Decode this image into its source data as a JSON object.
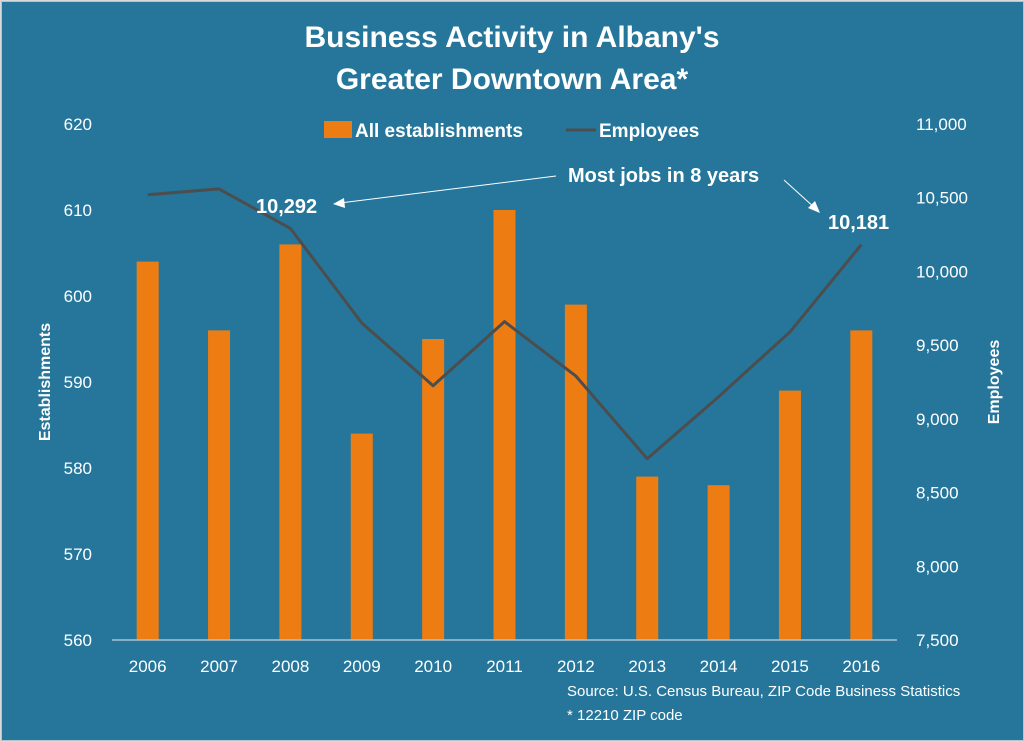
{
  "chart_data": {
    "type": "bar+line",
    "title": "Business Activity in Albany's Greater Downtown Area*",
    "title_lines": [
      "Business Activity in Albany's",
      "Greater Downtown Area*"
    ],
    "categories": [
      "2006",
      "2007",
      "2008",
      "2009",
      "2010",
      "2011",
      "2012",
      "2013",
      "2014",
      "2015",
      "2016"
    ],
    "series": [
      {
        "name": "All establishments",
        "type": "bar",
        "axis": "left",
        "color": "#ed7d12",
        "values": [
          604,
          596,
          606,
          584,
          595,
          610,
          599,
          579,
          578,
          589,
          596
        ]
      },
      {
        "name": "Employees",
        "type": "line",
        "axis": "right",
        "color": "#4d4d4d",
        "values": [
          10520,
          10560,
          10292,
          9650,
          9225,
          9660,
          9290,
          8730,
          9150,
          9590,
          10181
        ]
      }
    ],
    "left_axis": {
      "label": "Establishments",
      "ylim": [
        560,
        620
      ],
      "ticks": [
        "620",
        "610",
        "600",
        "590",
        "580",
        "570",
        "560"
      ],
      "tick_values": [
        620,
        610,
        600,
        590,
        580,
        570,
        560
      ]
    },
    "right_axis": {
      "label": "Employees",
      "ylim": [
        7500,
        11000
      ],
      "ticks": [
        "11,000",
        "10,500",
        "10,000",
        "9,500",
        "9,000",
        "8,500",
        "8,000",
        "7,500"
      ],
      "tick_values": [
        11000,
        10500,
        10000,
        9500,
        9000,
        8500,
        8000,
        7500
      ]
    },
    "xlabel": "",
    "grid": false,
    "legend_position": "top",
    "annotations": {
      "callout": "Most  jobs  in 8 years",
      "label_2008": "10,292",
      "label_2016": "10,181"
    },
    "source": "Source: U.S. Census Bureau, ZIP Code Business Statistics",
    "footnote": "* 12210 ZIP code"
  },
  "colors": {
    "background": "#25769a",
    "bar": "#ed7d12",
    "line": "#4d4d4d",
    "text": "#ffffff",
    "axis_line": "#a9c4d2"
  }
}
